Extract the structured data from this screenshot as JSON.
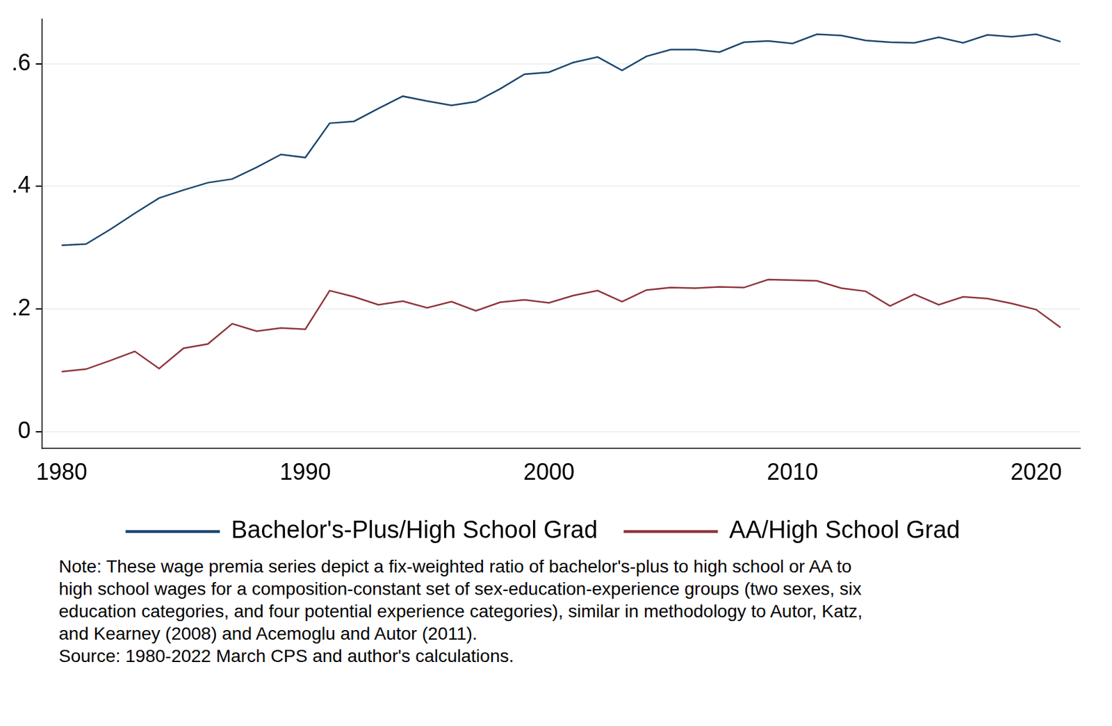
{
  "chart_data": {
    "type": "line",
    "x": [
      1980,
      1981,
      1982,
      1983,
      1984,
      1985,
      1986,
      1987,
      1988,
      1989,
      1990,
      1991,
      1992,
      1993,
      1994,
      1995,
      1996,
      1997,
      1998,
      1999,
      2000,
      2001,
      2002,
      2003,
      2004,
      2005,
      2006,
      2007,
      2008,
      2009,
      2010,
      2011,
      2012,
      2013,
      2014,
      2015,
      2016,
      2017,
      2018,
      2019,
      2020,
      2021
    ],
    "series": [
      {
        "name": "Bachelor's-Plus/High School Grad",
        "color": "#1a476f",
        "values": [
          0.304,
          0.306,
          0.33,
          0.356,
          0.381,
          0.394,
          0.406,
          0.412,
          0.431,
          0.452,
          0.447,
          0.503,
          0.506,
          0.527,
          0.547,
          0.539,
          0.532,
          0.538,
          0.559,
          0.583,
          0.586,
          0.602,
          0.611,
          0.589,
          0.612,
          0.623,
          0.623,
          0.619,
          0.635,
          0.637,
          0.633,
          0.648,
          0.646,
          0.638,
          0.635,
          0.634,
          0.643,
          0.634,
          0.647,
          0.644,
          0.648,
          0.636
        ]
      },
      {
        "name": "AA/High School Grad",
        "color": "#90353b",
        "values": [
          0.098,
          0.102,
          0.116,
          0.131,
          0.103,
          0.136,
          0.143,
          0.176,
          0.164,
          0.169,
          0.167,
          0.23,
          0.22,
          0.207,
          0.213,
          0.202,
          0.212,
          0.197,
          0.211,
          0.215,
          0.21,
          0.222,
          0.23,
          0.212,
          0.231,
          0.235,
          0.234,
          0.236,
          0.235,
          0.248,
          0.247,
          0.246,
          0.234,
          0.229,
          0.205,
          0.224,
          0.207,
          0.22,
          0.217,
          0.209,
          0.199,
          0.17
        ]
      }
    ],
    "xlim": [
      1979.2,
      2021.8
    ],
    "xticks": [
      1980,
      1990,
      2000,
      2010,
      2020
    ],
    "ylim": [
      -0.027,
      0.673
    ],
    "yticks": [
      0,
      {
        "value": 0.2,
        "label": ".2"
      },
      {
        "value": 0.4,
        "label": ".4"
      },
      {
        "value": 0.6,
        "label": ".6"
      }
    ],
    "grid": true,
    "legend": "bottom",
    "note": [
      "Note: These wage premia series depict a fix-weighted ratio of bachelor's-plus to high school or AA to",
      "high school wages for a composition-constant set of sex-education-experience groups (two sexes, six",
      "education categories, and four potential experience categories), similar in methodology to Autor, Katz,",
      "and Kearney (2008) and Acemoglu and Autor (2011).",
      "Source: 1980-2022 March CPS and author's calculations."
    ]
  }
}
